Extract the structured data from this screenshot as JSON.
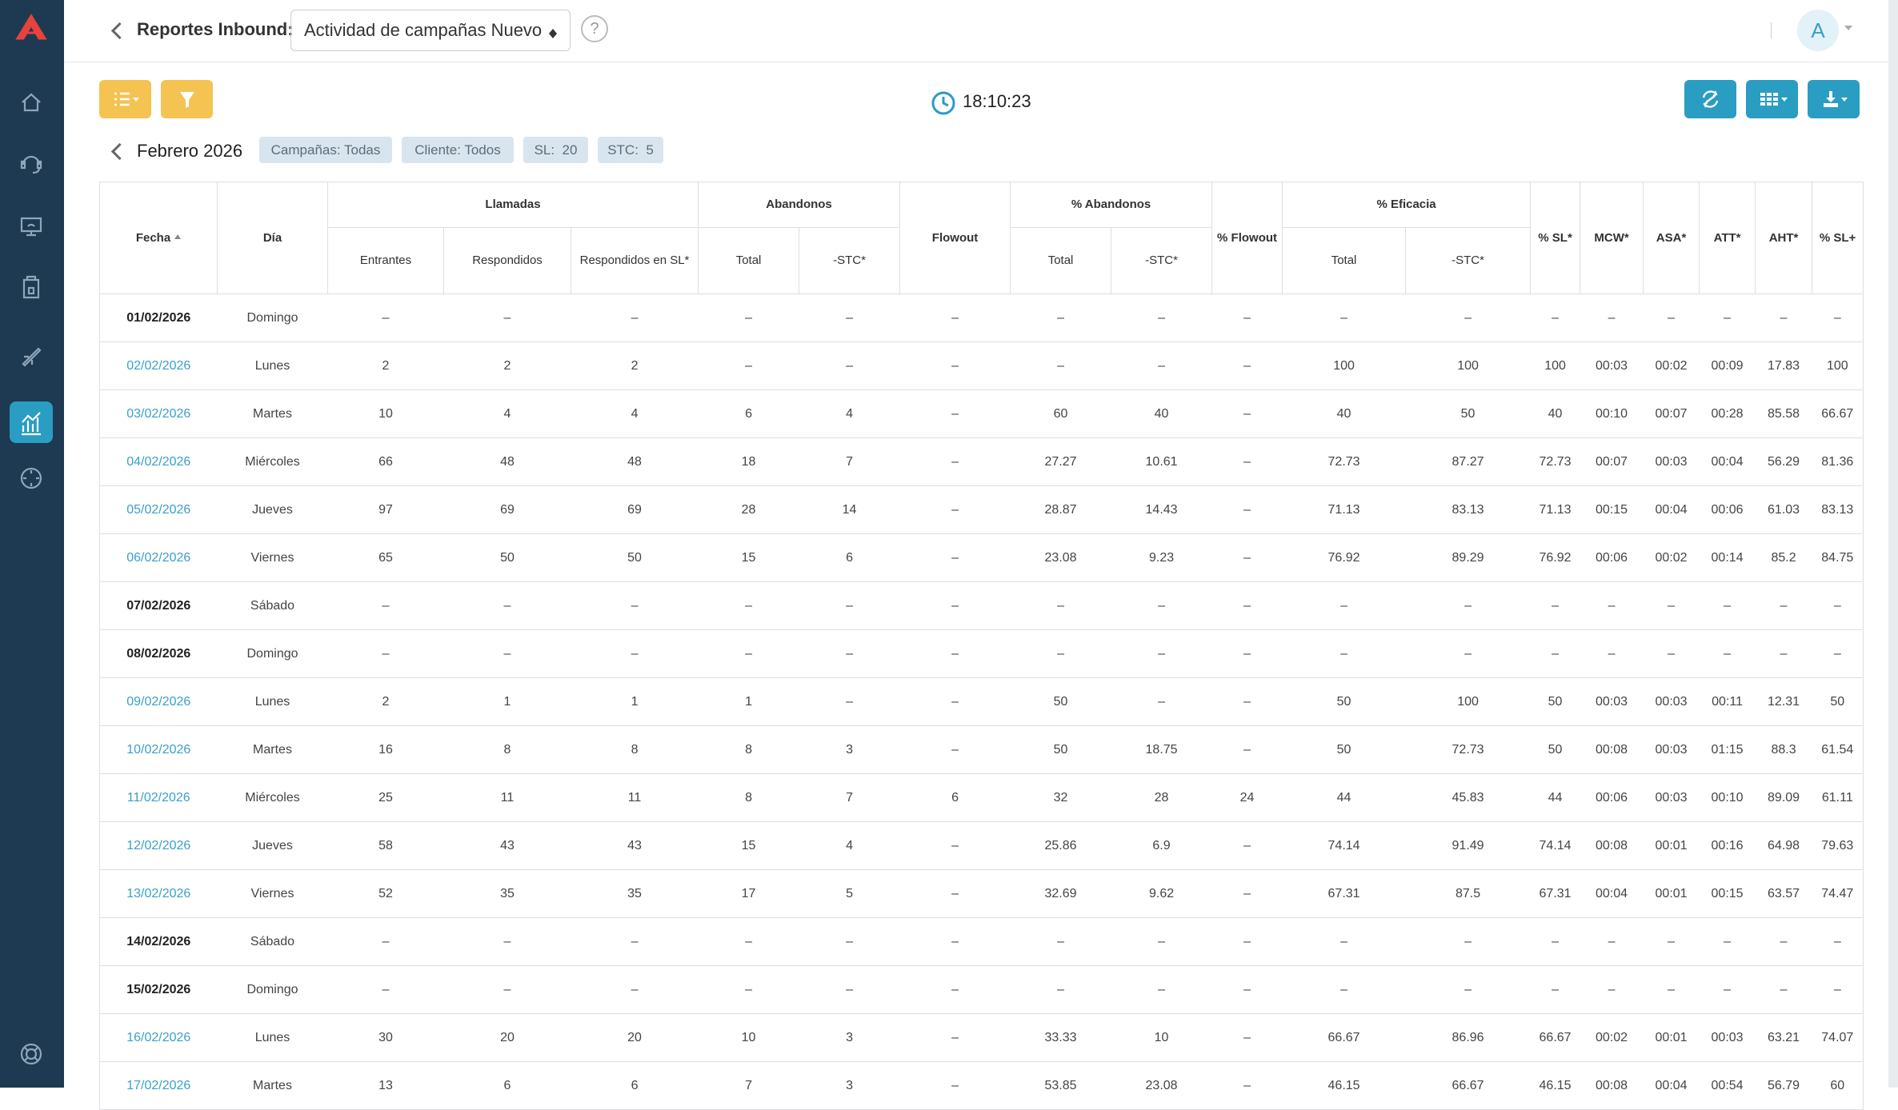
{
  "header": {
    "title": "Reportes Inbound:",
    "report_select": "Actividad de campañas Nuevo",
    "help": "?",
    "avatar": "A"
  },
  "toolbar": {
    "time": "18:10:23"
  },
  "filters": {
    "period": "Febrero 2026",
    "chips": [
      "Campañas: Todas",
      "Cliente: Todos",
      "SL:  20",
      "STC:  5"
    ]
  },
  "table": {
    "header_top": [
      "Fecha",
      "Día",
      "Llamadas",
      "Abandonos",
      "Flowout",
      "% Abandonos",
      "% Flowout",
      "% Eficacia",
      "% SL*",
      "MCW*",
      "ASA*",
      "ATT*",
      "AHT*",
      "% SL+"
    ],
    "header_sub": [
      "Entrantes",
      "Respondidos",
      "Respondidos en SL*",
      "Total",
      "-STC*",
      "Total",
      "-STC*",
      "Total",
      "-STC*"
    ],
    "rows": [
      [
        "01/02/2026",
        "Domingo",
        "–",
        "–",
        "–",
        "–",
        "–",
        "–",
        "–",
        "–",
        "–",
        "–",
        "–",
        "–",
        "–",
        "–",
        "–",
        "–",
        "–"
      ],
      [
        "02/02/2026",
        "Lunes",
        2,
        2,
        2,
        "–",
        "–",
        "–",
        "–",
        "–",
        "–",
        100,
        100,
        100,
        "00:03",
        "00:02",
        "00:09",
        17.83,
        100
      ],
      [
        "03/02/2026",
        "Martes",
        10,
        4,
        4,
        6,
        4,
        "–",
        60,
        40,
        "–",
        40,
        50,
        40,
        "00:10",
        "00:07",
        "00:28",
        85.58,
        66.67
      ],
      [
        "04/02/2026",
        "Miércoles",
        66,
        48,
        48,
        18,
        7,
        "–",
        27.27,
        10.61,
        "–",
        72.73,
        87.27,
        72.73,
        "00:07",
        "00:03",
        "00:04",
        56.29,
        81.36
      ],
      [
        "05/02/2026",
        "Jueves",
        97,
        69,
        69,
        28,
        14,
        "–",
        28.87,
        14.43,
        "–",
        71.13,
        83.13,
        71.13,
        "00:15",
        "00:04",
        "00:06",
        61.03,
        83.13
      ],
      [
        "06/02/2026",
        "Viernes",
        65,
        50,
        50,
        15,
        6,
        "–",
        23.08,
        9.23,
        "–",
        76.92,
        89.29,
        76.92,
        "00:06",
        "00:02",
        "00:14",
        85.2,
        84.75
      ],
      [
        "07/02/2026",
        "Sábado",
        "–",
        "–",
        "–",
        "–",
        "–",
        "–",
        "–",
        "–",
        "–",
        "–",
        "–",
        "–",
        "–",
        "–",
        "–",
        "–",
        "–"
      ],
      [
        "08/02/2026",
        "Domingo",
        "–",
        "–",
        "–",
        "–",
        "–",
        "–",
        "–",
        "–",
        "–",
        "–",
        "–",
        "–",
        "–",
        "–",
        "–",
        "–",
        "–"
      ],
      [
        "09/02/2026",
        "Lunes",
        2,
        1,
        1,
        1,
        "–",
        "–",
        50,
        "–",
        "–",
        50,
        100,
        50,
        "00:03",
        "00:03",
        "00:11",
        12.31,
        50
      ],
      [
        "10/02/2026",
        "Martes",
        16,
        8,
        8,
        8,
        3,
        "–",
        50,
        18.75,
        "–",
        50,
        72.73,
        50,
        "00:08",
        "00:03",
        "01:15",
        88.3,
        61.54
      ],
      [
        "11/02/2026",
        "Miércoles",
        25,
        11,
        11,
        8,
        7,
        6,
        32,
        28,
        24,
        44,
        45.83,
        44,
        "00:06",
        "00:03",
        "00:10",
        89.09,
        61.11
      ],
      [
        "12/02/2026",
        "Jueves",
        58,
        43,
        43,
        15,
        4,
        "–",
        25.86,
        6.9,
        "–",
        74.14,
        91.49,
        74.14,
        "00:08",
        "00:01",
        "00:16",
        64.98,
        79.63
      ],
      [
        "13/02/2026",
        "Viernes",
        52,
        35,
        35,
        17,
        5,
        "–",
        32.69,
        9.62,
        "–",
        67.31,
        87.5,
        67.31,
        "00:04",
        "00:01",
        "00:15",
        63.57,
        74.47
      ],
      [
        "14/02/2026",
        "Sábado",
        "–",
        "–",
        "–",
        "–",
        "–",
        "–",
        "–",
        "–",
        "–",
        "–",
        "–",
        "–",
        "–",
        "–",
        "–",
        "–",
        "–"
      ],
      [
        "15/02/2026",
        "Domingo",
        "–",
        "–",
        "–",
        "–",
        "–",
        "–",
        "–",
        "–",
        "–",
        "–",
        "–",
        "–",
        "–",
        "–",
        "–",
        "–",
        "–"
      ],
      [
        "16/02/2026",
        "Lunes",
        30,
        20,
        20,
        10,
        3,
        "–",
        33.33,
        10,
        "–",
        66.67,
        86.96,
        66.67,
        "00:02",
        "00:01",
        "00:03",
        63.21,
        74.07
      ],
      [
        "17/02/2026",
        "Martes",
        13,
        6,
        6,
        7,
        3,
        "–",
        53.85,
        23.08,
        "–",
        46.15,
        66.67,
        46.15,
        "00:08",
        "00:04",
        "00:54",
        56.79,
        60
      ]
    ]
  }
}
